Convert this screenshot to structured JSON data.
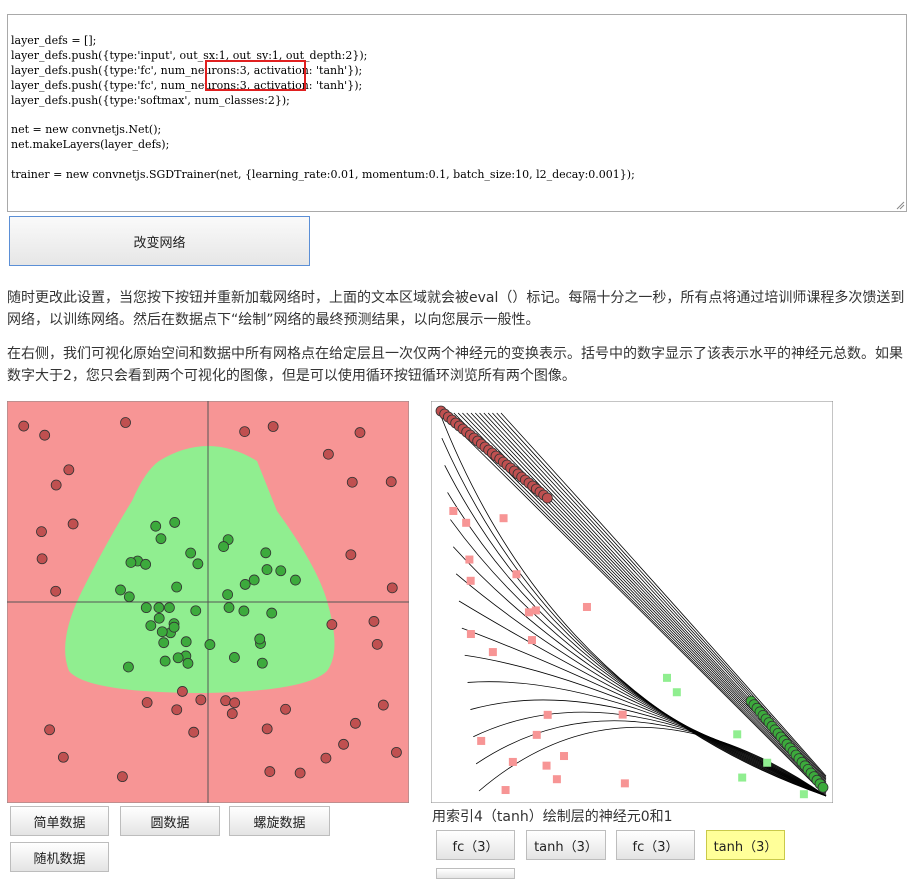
{
  "code_lines": [
    "layer_defs = [];",
    "layer_defs.push({type:'input', out_sx:1, out_sy:1, out_depth:2});",
    "layer_defs.push({type:'fc', num_neurons:3, activation: 'tanh'});",
    "layer_defs.push({type:'fc', num_neurons:3, activation: 'tanh'});",
    "layer_defs.push({type:'softmax', num_classes:2});",
    "",
    "net = new convnetjs.Net();",
    "net.makeLayers(layer_defs);",
    "",
    "trainer = new convnetjs.SGDTrainer(net, {learning_rate:0.01, momentum:0.1, batch_size:10, l2_decay:0.001});"
  ],
  "change_network_button": "改变网络",
  "paragraph_1": "随时更改此设置，当您按下按钮并重新加载网络时，上面的文本区域就会被eval（）标记。每隔十分之一秒，所有点将通过培训师课程多次馈送到网络，以训练网络。然后在数据点下“绘制”网络的最终预测结果，以向您展示一般性。",
  "paragraph_2": "在右侧，我们可视化原始空间和数据中所有网格点在给定层且一次仅两个神经元的变换表示。括号中的数字显示了该表示水平的神经元总数。如果数字大于2，您只会看到两个可视化的图像，但是可以使用循环按钮循环浏览所有两个图像。",
  "data_buttons": [
    "简单数据",
    "圆数据",
    "螺旋数据",
    "随机数据"
  ],
  "viz_caption": "用索引4（tanh）绘制层的神经元0和1",
  "layer_buttons": [
    "fc（3）",
    "tanh（3）",
    "fc（3）",
    "tanh（3）"
  ],
  "selected_layer_index": 3,
  "colors": {
    "class_red_region": "#f79595",
    "class_green_region": "#90ee90",
    "point_red": "#c05050",
    "point_green": "#3caa3c",
    "highlight_box": "#e02020",
    "selected_layer_button": "#ffff99"
  }
}
